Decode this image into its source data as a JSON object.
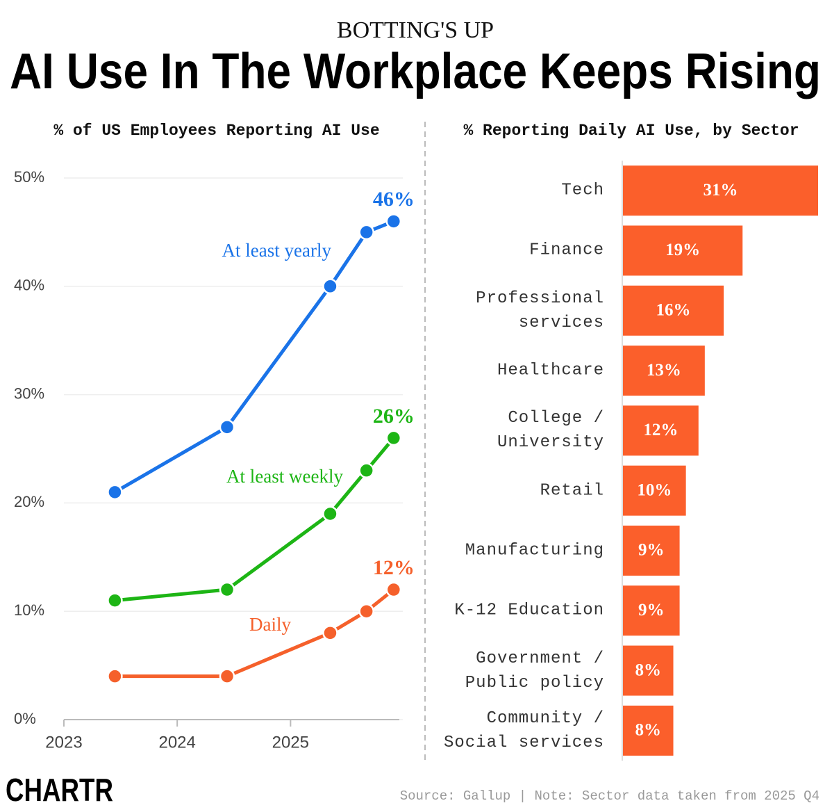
{
  "header": {
    "kicker": "BOTTING'S UP",
    "title": "AI Use In The Workplace Keeps Rising"
  },
  "footer": {
    "logo": "CHARTR",
    "source": "Source: Gallup | Note: Sector data taken from 2025 Q4"
  },
  "chart_data": [
    {
      "type": "line",
      "title": "% of US Employees Reporting AI Use",
      "x": [
        2023.45,
        2024.44,
        2025.35,
        2025.67,
        2025.91
      ],
      "xlim": [
        2023,
        2025.96
      ],
      "xticks": [
        2023,
        2024,
        2025
      ],
      "ylim": [
        0,
        50
      ],
      "yticks": [
        {
          "value": 0,
          "label": "0%"
        },
        {
          "value": 10,
          "label": "10%"
        },
        {
          "value": 20,
          "label": "20%"
        },
        {
          "value": 30,
          "label": "30%"
        },
        {
          "value": 40,
          "label": "40%"
        },
        {
          "value": 50,
          "label": "50%"
        }
      ],
      "grid": true,
      "series": [
        {
          "name": "At least yearly",
          "color": "#1a73e8",
          "values": [
            21,
            27,
            40,
            45,
            46
          ],
          "value_labels": [
            null,
            null,
            null,
            null,
            "46%"
          ]
        },
        {
          "name": "At least weekly",
          "color": "#1db515",
          "values": [
            11,
            12,
            19,
            23,
            26
          ],
          "value_labels": [
            null,
            null,
            null,
            null,
            "26%"
          ]
        },
        {
          "name": "Daily",
          "color": "#f5602b",
          "values": [
            4,
            4,
            8,
            10,
            12
          ],
          "value_labels": [
            null,
            null,
            null,
            null,
            "12%"
          ]
        }
      ]
    },
    {
      "type": "bar",
      "horizontal": true,
      "title": "% Reporting Daily AI Use, by Sector",
      "categories": [
        "Tech",
        "Finance",
        "Professional services",
        "Healthcare",
        "College / University",
        "Retail",
        "Manufacturing",
        "K-12 Education",
        "Government / Public policy",
        "Community / Social services"
      ],
      "values": [
        31,
        19,
        16,
        13,
        12,
        10,
        9,
        9,
        8,
        8
      ],
      "value_labels": [
        "31%",
        "19%",
        "16%",
        "13%",
        "12%",
        "10%",
        "9%",
        "9%",
        "8%",
        "8%"
      ],
      "xlim": [
        0,
        31
      ],
      "color": "#fb5f2b"
    }
  ]
}
